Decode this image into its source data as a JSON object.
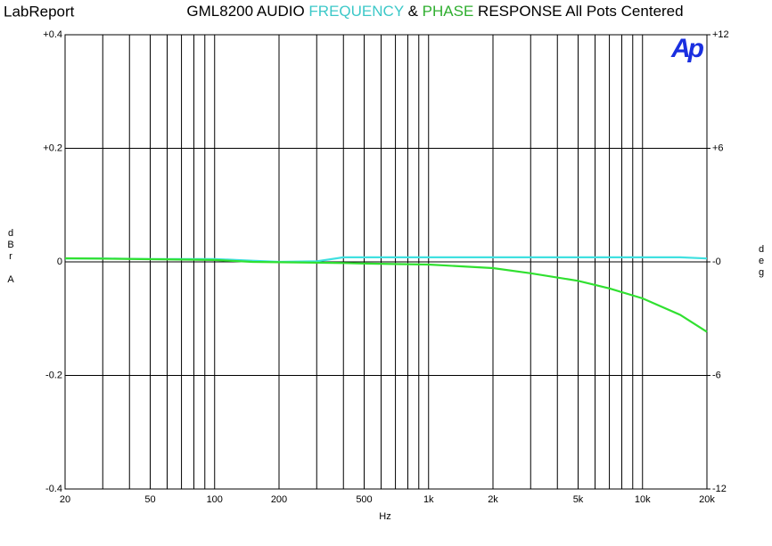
{
  "chart_data": {
    "type": "line",
    "header": "LabReport",
    "title_parts": [
      {
        "text": "GML8200 AUDIO",
        "color": "#000000"
      },
      {
        "text": "FREQUENCY",
        "color": "#3cc8c8"
      },
      {
        "text": "&",
        "color": "#000000"
      },
      {
        "text": "PHASE",
        "color": "#2fae2f"
      },
      {
        "text": "RESPONSE All Pots Centered",
        "color": "#000000"
      }
    ],
    "logo": "Ap",
    "xlabel": "Hz",
    "ylabel": "dBr A",
    "y2label": "deg",
    "xscale": "log",
    "x": [
      20,
      30,
      50,
      100,
      150,
      200,
      300,
      400,
      500,
      1000,
      2000,
      3000,
      5000,
      7000,
      10000,
      15000,
      20000
    ],
    "series": [
      {
        "color": "#40e0e0",
        "axis": "y",
        "values": [
          0.006,
          0.006,
          0.005,
          0.005,
          0.002,
          0,
          0.001,
          0.008,
          0.008,
          0.008,
          0.008,
          0.008,
          0.008,
          0.008,
          0.008,
          0.008,
          0.006
        ]
      },
      {
        "color": "#30e030",
        "axis": "y2",
        "values": [
          0.19,
          0.17,
          0.14,
          0.1,
          0,
          -0.02,
          -0.04,
          -0.06,
          -0.09,
          -0.14,
          -0.33,
          -0.6,
          -1.0,
          -1.4,
          -1.93,
          -2.8,
          -3.7
        ]
      }
    ],
    "xlim": [
      20,
      20000
    ],
    "xticks": [
      20,
      50,
      100,
      200,
      500,
      {
        "value": 1000,
        "label": "1k"
      },
      {
        "value": 2000,
        "label": "2k"
      },
      {
        "value": 5000,
        "label": "5k"
      },
      {
        "value": 10000,
        "label": "10k"
      },
      {
        "value": 20000,
        "label": "20k"
      }
    ],
    "xminor": [
      30,
      40,
      60,
      70,
      80,
      90,
      300,
      400,
      600,
      700,
      800,
      900,
      3000,
      4000,
      6000,
      7000,
      8000,
      9000
    ],
    "ylim": [
      -0.4,
      0.4
    ],
    "yticks": [
      {
        "value": 0.4,
        "label": "+0.4"
      },
      {
        "value": 0.2,
        "label": "+0.2"
      },
      0,
      -0.2,
      -0.4
    ],
    "y2lim": [
      -12,
      12
    ],
    "y2ticks": [
      {
        "value": 12,
        "label": "+12"
      },
      {
        "value": 6,
        "label": "+6"
      },
      {
        "value": 0,
        "label": "-0"
      },
      -6,
      -12
    ],
    "grid": true
  }
}
